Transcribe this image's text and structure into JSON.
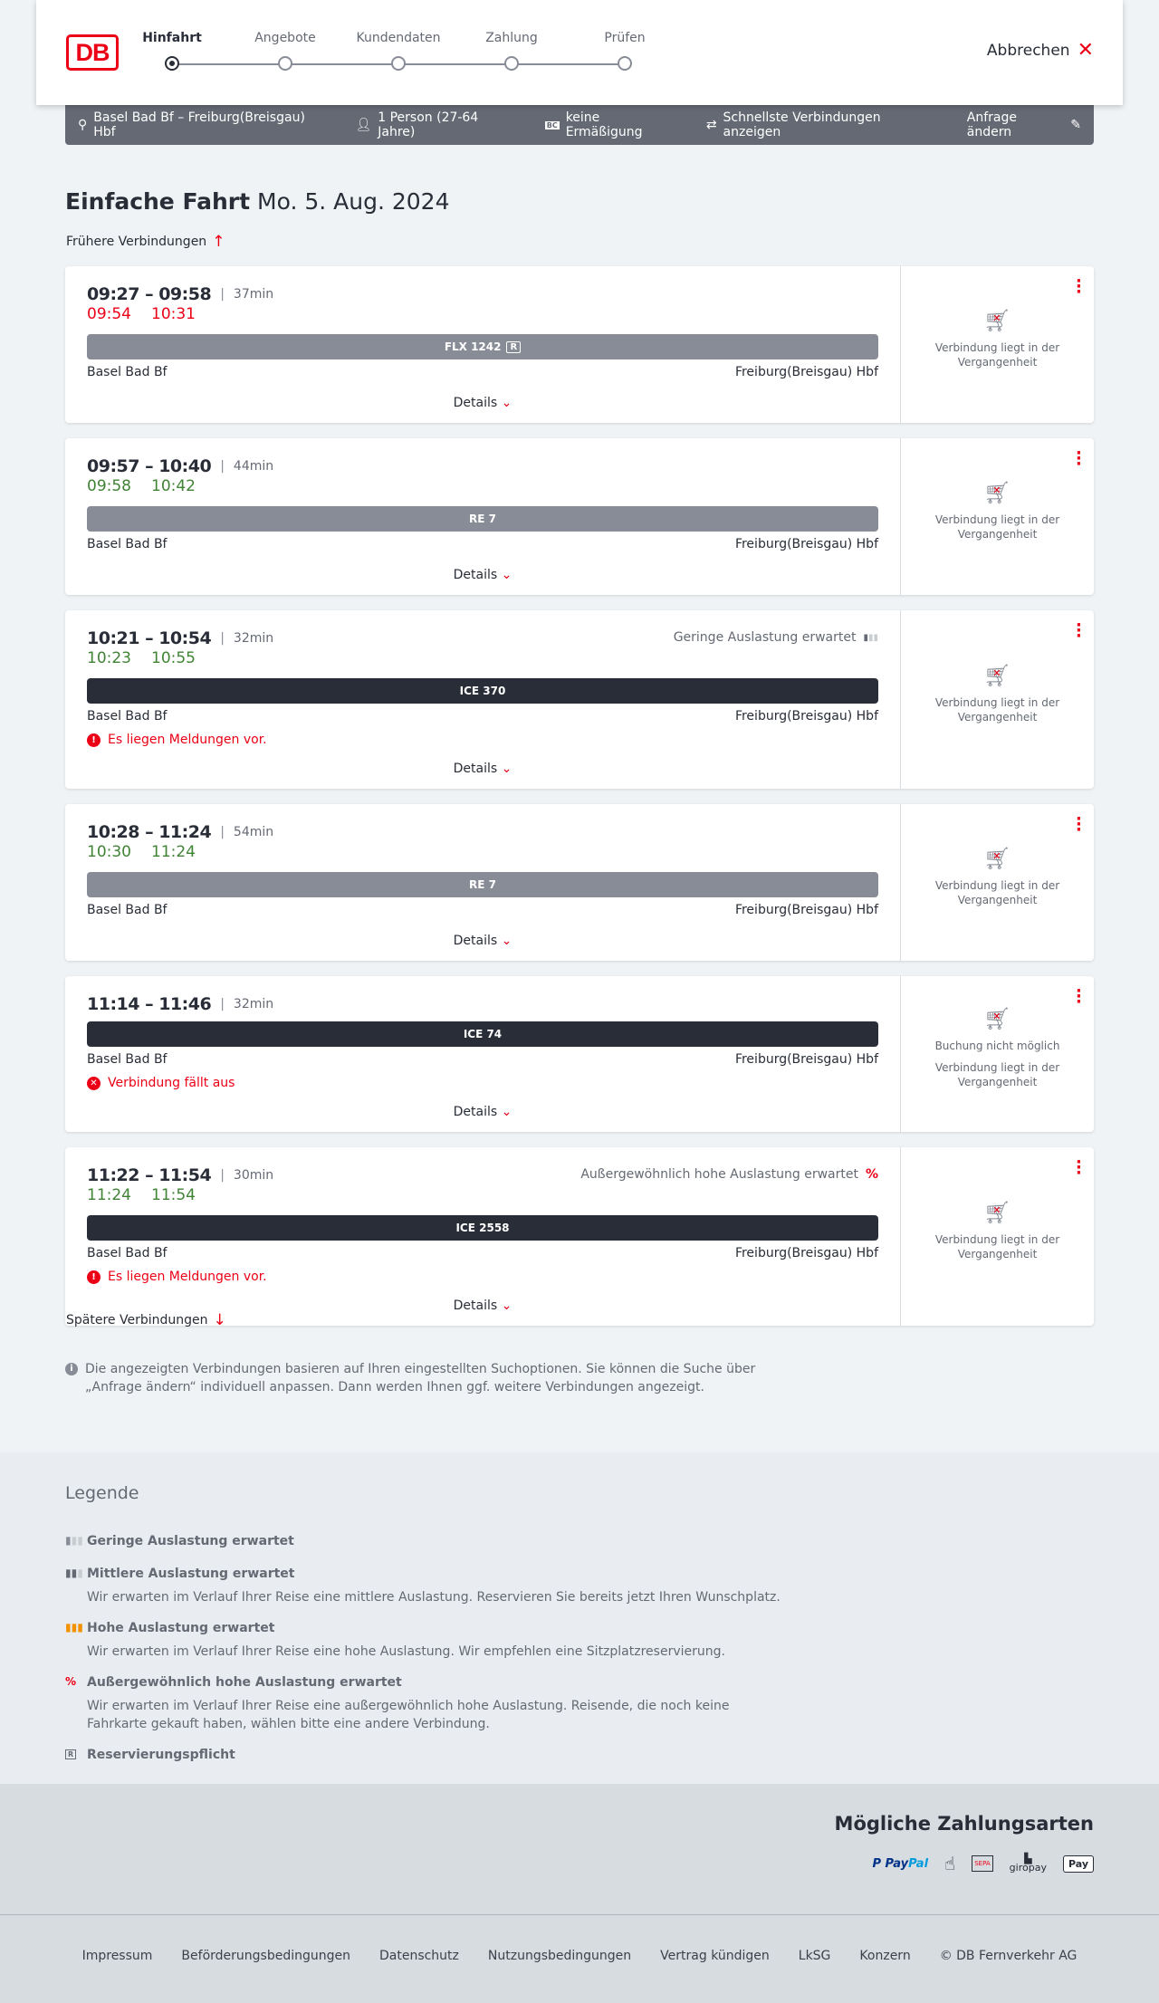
{
  "header": {
    "logo": "DB",
    "steps": [
      "Hinfahrt",
      "Angebote",
      "Kundendaten",
      "Zahlung",
      "Prüfen"
    ],
    "active_step": 0,
    "cancel": "Abbrechen"
  },
  "search": {
    "route": "Basel Bad Bf – Freiburg(Breisgau) Hbf",
    "persons": "1 Person (27-64 Jahre)",
    "discount": "keine Ermäßigung",
    "fastest": "Schnellste Verbindungen anzeigen",
    "edit": "Anfrage ändern"
  },
  "title": {
    "type": "Einfache Fahrt",
    "date": "Mo. 5. Aug. 2024"
  },
  "earlier": "Frühere Verbindungen",
  "later": "Spätere Verbindungen",
  "details_label": "Details",
  "connections": [
    {
      "time": "09:27 – 09:58",
      "duration": "37min",
      "rt_dep": "09:54",
      "rt_arr": "10:31",
      "rt_color": "red",
      "train": "FLX 1242",
      "reservation": true,
      "bar": "grey",
      "from": "Basel Bad Bf",
      "to": "Freiburg(Breisgau) Hbf",
      "occupancy": "",
      "message": "",
      "side": [
        "Verbindung liegt in der Vergangenheit"
      ]
    },
    {
      "time": "09:57 – 10:40",
      "duration": "44min",
      "rt_dep": "09:58",
      "rt_arr": "10:42",
      "rt_color": "green",
      "train": "RE 7",
      "bar": "grey",
      "from": "Basel Bad Bf",
      "to": "Freiburg(Breisgau) Hbf",
      "occupancy": "",
      "message": "",
      "side": [
        "Verbindung liegt in der Vergangenheit"
      ]
    },
    {
      "time": "10:21 – 10:54",
      "duration": "32min",
      "rt_dep": "10:23",
      "rt_arr": "10:55",
      "rt_color": "green",
      "train": "ICE 370",
      "bar": "dark",
      "from": "Basel Bad Bf",
      "to": "Freiburg(Breisgau) Hbf",
      "occupancy": "Geringe Auslastung erwartet",
      "occ_level": "low",
      "message": "Es liegen Meldungen vor.",
      "msg_icon": "exclamation-icon",
      "side": [
        "Verbindung liegt in der Vergangenheit"
      ]
    },
    {
      "time": "10:28 – 11:24",
      "duration": "54min",
      "rt_dep": "10:30",
      "rt_arr": "11:24",
      "rt_color": "green",
      "train": "RE 7",
      "bar": "grey",
      "from": "Basel Bad Bf",
      "to": "Freiburg(Breisgau) Hbf",
      "occupancy": "",
      "message": "",
      "side": [
        "Verbindung liegt in der Vergangenheit"
      ]
    },
    {
      "time": "11:14 – 11:46",
      "duration": "32min",
      "rt_dep": "",
      "rt_arr": "",
      "train": "ICE 74",
      "bar": "dark",
      "from": "Basel Bad Bf",
      "to": "Freiburg(Breisgau) Hbf",
      "occupancy": "",
      "message": "Verbindung fällt aus",
      "msg_icon": "cancel-circle-icon",
      "side": [
        "Buchung nicht möglich",
        "Verbindung liegt in der Vergangenheit"
      ]
    },
    {
      "time": "11:22 – 11:54",
      "duration": "30min",
      "rt_dep": "11:24",
      "rt_arr": "11:54",
      "rt_color": "green",
      "train": "ICE 2558",
      "bar": "dark",
      "from": "Basel Bad Bf",
      "to": "Freiburg(Breisgau) Hbf",
      "occupancy": "Außergewöhnlich hohe Auslastung erwartet",
      "occ_level": "exceptional",
      "message": "Es liegen Meldungen vor.",
      "msg_icon": "exclamation-icon",
      "side": [
        "Verbindung liegt in der Vergangenheit"
      ]
    }
  ],
  "info": "Die angezeigten Verbindungen basieren auf Ihren eingestellten Suchoptionen. Sie können die Suche über „Anfrage ändern“ individuell anpassen. Dann werden Ihnen ggf. weitere Verbindungen angezeigt.",
  "legend": {
    "title": "Legende",
    "items": [
      {
        "title": "Geringe Auslastung erwartet",
        "text": ""
      },
      {
        "title": "Mittlere Auslastung erwartet",
        "text": "Wir erwarten im Verlauf Ihrer Reise eine mittlere Auslastung. Reservieren Sie bereits jetzt Ihren Wunschplatz."
      },
      {
        "title": "Hohe Auslastung erwartet",
        "text": "Wir erwarten im Verlauf Ihrer Reise eine hohe Auslastung. Wir empfehlen eine Sitzplatzreservierung."
      },
      {
        "title": "Außergewöhnlich hohe Auslastung erwartet",
        "text": "Wir erwarten im Verlauf Ihrer Reise eine außergewöhnlich hohe Auslastung. Reisende, die noch keine Fahrkarte gekauft haben, wählen bitte eine andere Verbindung."
      },
      {
        "title": "Reservierungspflicht",
        "text": ""
      }
    ]
  },
  "payment": {
    "title": "Mögliche Zahlungsarten",
    "methods": [
      "PayPal",
      "Kreditkarte",
      "SEPA",
      "giropay",
      "Apple Pay"
    ]
  },
  "footer": [
    "Impressum",
    "Beförderungsbedingungen",
    "Datenschutz",
    "Nutzungsbedingungen",
    "Vertrag kündigen",
    "LkSG",
    "Konzern",
    "© DB Fernverkehr AG"
  ],
  "colors": {
    "brand": "#ec0016",
    "delay": "#ec0016",
    "ontime": "#408335",
    "bar_grey": "#878c96",
    "bar_dark": "#282d37"
  }
}
